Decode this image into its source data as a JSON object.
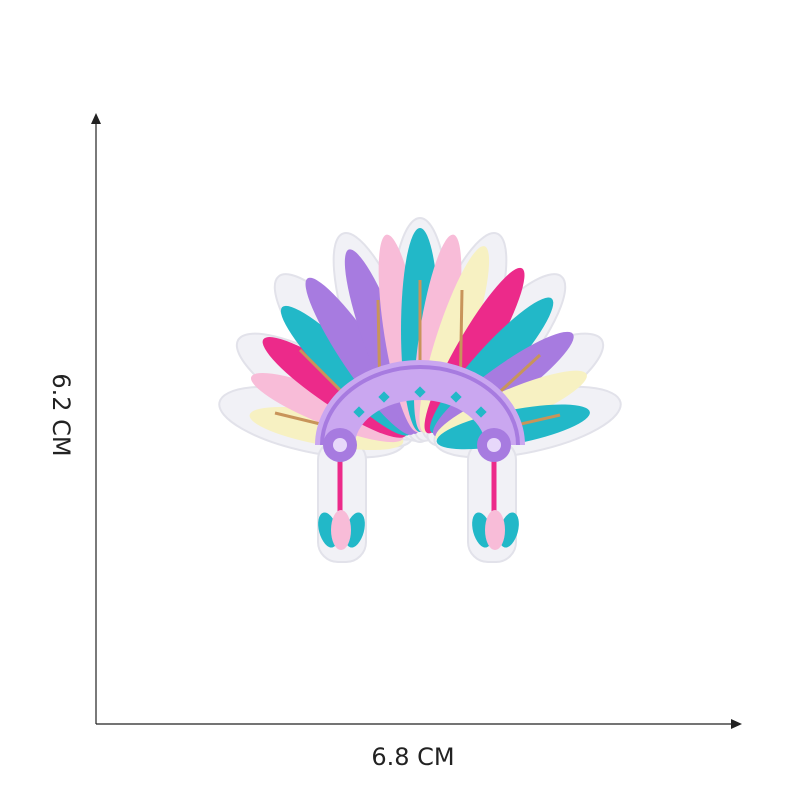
{
  "dimensions": {
    "height_label": "6.2 CM",
    "width_label": "6.8 CM"
  }
}
